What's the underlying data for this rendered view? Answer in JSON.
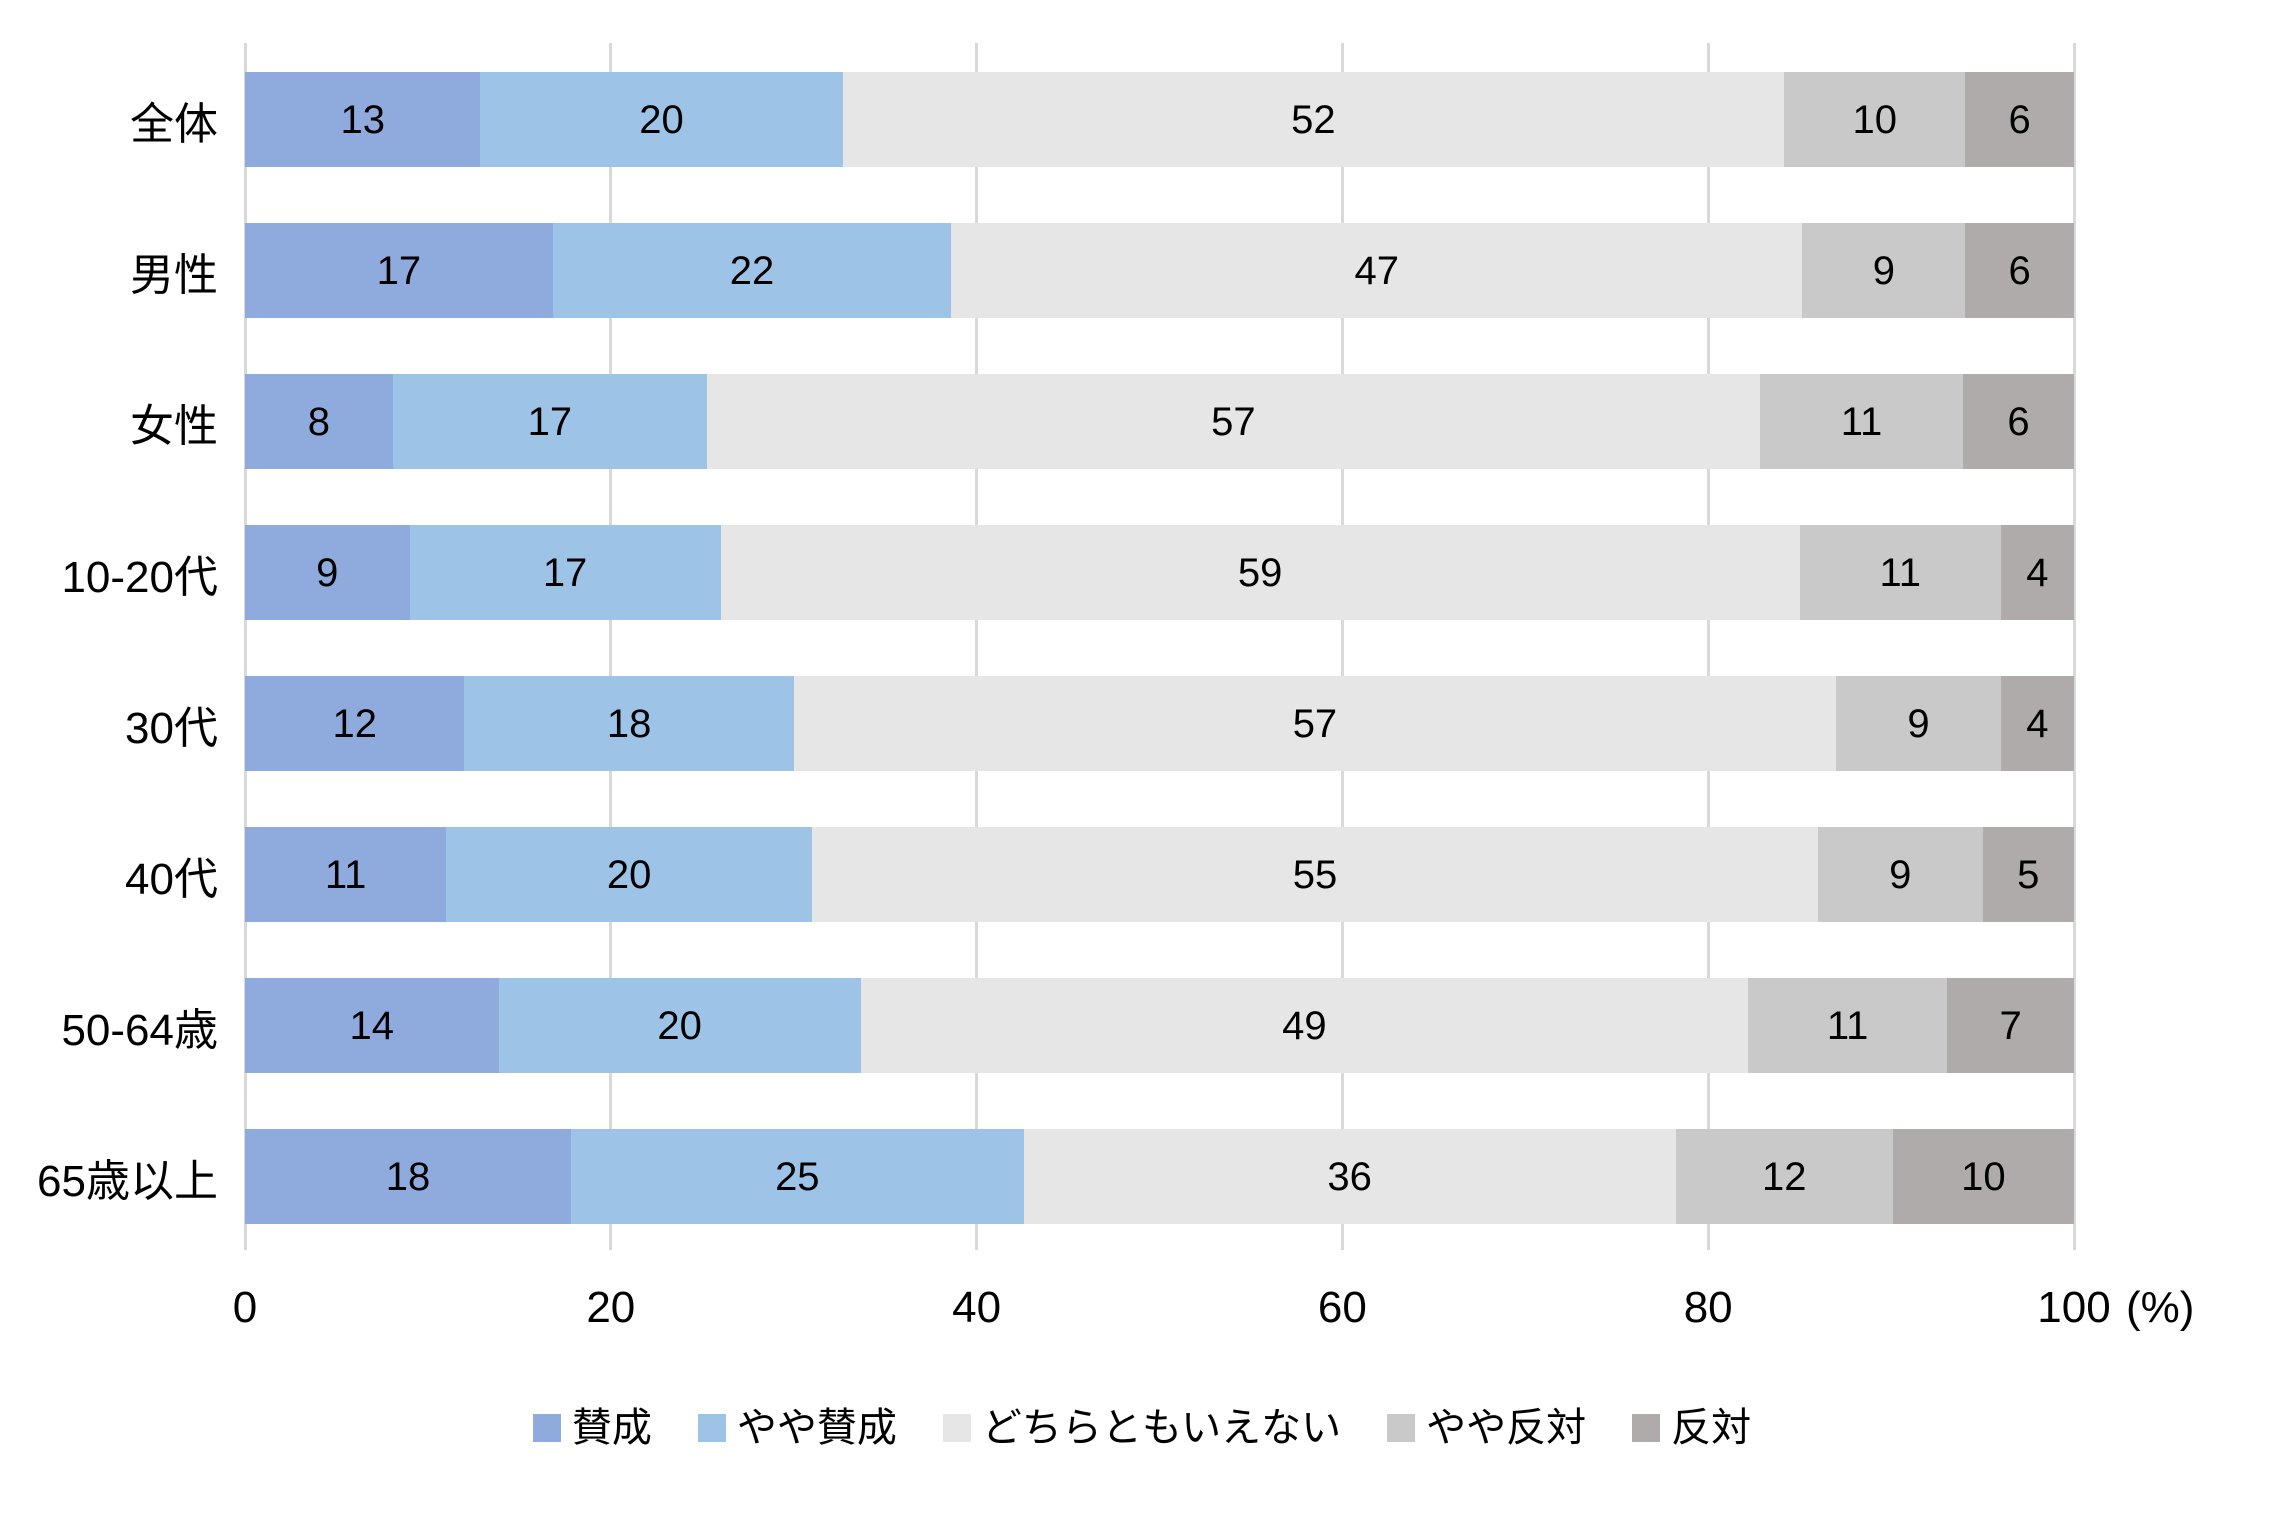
{
  "chart_data": {
    "type": "bar",
    "orientation": "horizontal",
    "stacked": true,
    "title": "",
    "categories": [
      "全体",
      "男性",
      "女性",
      "10-20代",
      "30代",
      "40代",
      "50-64歳",
      "65歳以上"
    ],
    "series": [
      {
        "name": "賛成",
        "color": "#8FAADC",
        "values": [
          13,
          17,
          8,
          9,
          12,
          11,
          14,
          18
        ]
      },
      {
        "name": "やや賛成",
        "color": "#9DC3E6",
        "values": [
          20,
          22,
          17,
          17,
          18,
          20,
          20,
          25
        ]
      },
      {
        "name": "どちらともいえない",
        "color": "#E7E6E6",
        "values": [
          52,
          47,
          57,
          59,
          57,
          55,
          49,
          36
        ]
      },
      {
        "name": "やや反対",
        "color": "#C9C9C9",
        "values": [
          10,
          9,
          11,
          11,
          9,
          9,
          11,
          12
        ]
      },
      {
        "name": "反対",
        "color": "#AFABAB",
        "values": [
          6,
          6,
          6,
          4,
          4,
          5,
          7,
          10
        ]
      }
    ],
    "x_ticks": [
      "0",
      "20",
      "40",
      "60",
      "80",
      "100"
    ],
    "xlim": [
      0,
      100
    ],
    "xlabel_unit": "(%)",
    "value_labels": "inside-center",
    "grid": true,
    "gridline_color": "#D9D9D9",
    "legend_position": "bottom",
    "background": "#FFFFFF",
    "text_color": "#000000"
  }
}
